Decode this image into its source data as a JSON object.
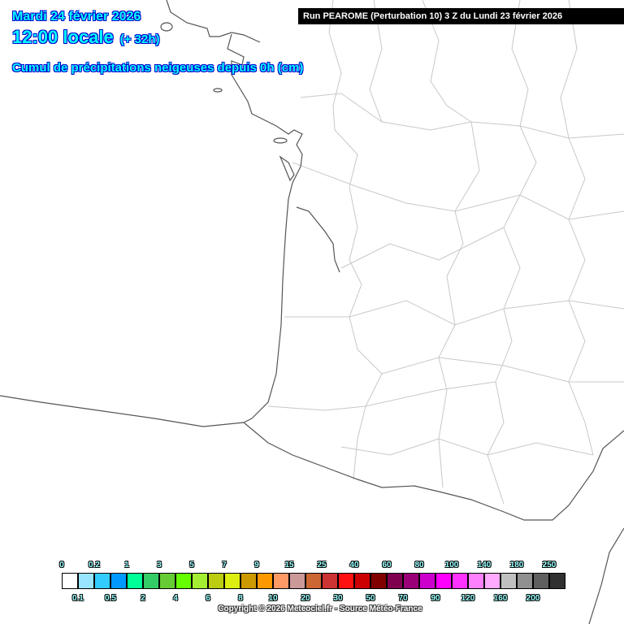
{
  "header": {
    "date": "Mardi 24 février 2026",
    "time": "12:00 locale",
    "lead": "(+ 32h)",
    "product": "Cumul de précipitations neigeuses depuis 0h (cm)",
    "run": "Run PEAROME (Perturbation 10) 3 Z du Lundi 23 février 2026"
  },
  "legend": {
    "unit": "cm",
    "labels": [
      "0",
      "0.1",
      "0.2",
      "0.5",
      "1",
      "2",
      "3",
      "4",
      "5",
      "6",
      "7",
      "8",
      "9",
      "10",
      "15",
      "20",
      "25",
      "30",
      "40",
      "50",
      "60",
      "70",
      "80",
      "90",
      "100",
      "120",
      "140",
      "160",
      "180",
      "200",
      "250"
    ],
    "colors": [
      "#ffffff",
      "#99e5ff",
      "#33ccff",
      "#0099ff",
      "#00ff99",
      "#33cc66",
      "#66cc33",
      "#66ff00",
      "#a3ee33",
      "#bbcc11",
      "#ddee11",
      "#cc9900",
      "#ff9900",
      "#ff9966",
      "#cc9999",
      "#cc6633",
      "#cc3333",
      "#ff1111",
      "#cc0000",
      "#800000",
      "#800050",
      "#990077",
      "#cc00cc",
      "#ff00ff",
      "#ff33ff",
      "#ff80ff",
      "#ffaaff",
      "#c0c0c0",
      "#909090",
      "#606060",
      "#303030"
    ]
  },
  "footer": {
    "copyright": "Copyright © 2026 Meteociel.fr - Source Météo-France"
  }
}
